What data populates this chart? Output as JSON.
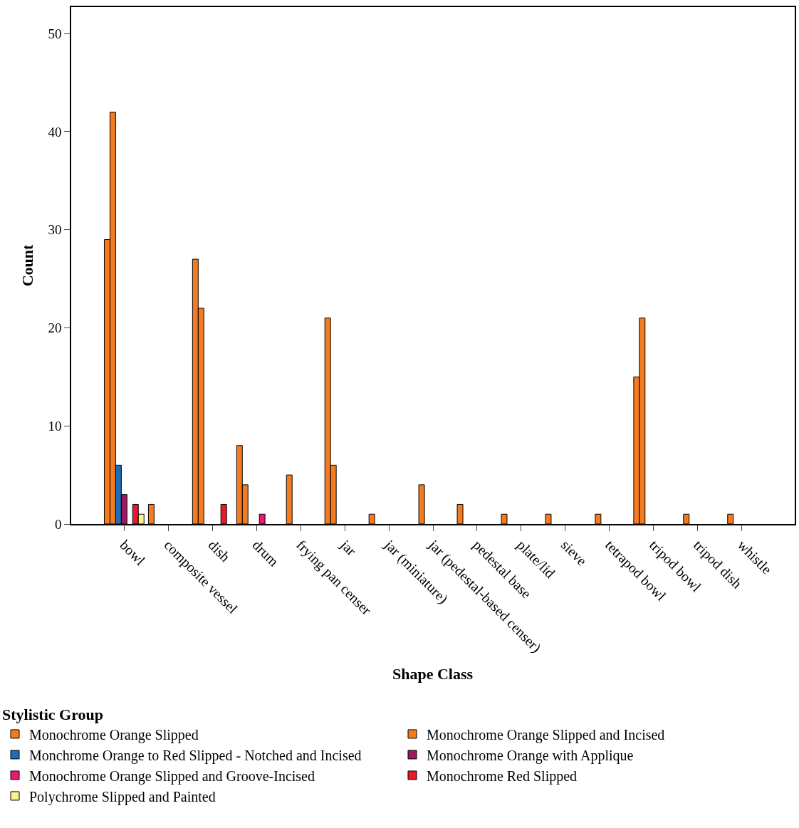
{
  "chart_data": {
    "type": "bar",
    "xlabel": "Shape Class",
    "ylabel": "Count",
    "legend_title": "Stylistic Group",
    "categories": [
      "bowl",
      "composite vessel",
      "dish",
      "drum",
      "frying pan censer",
      "jar",
      "jar (miniature)",
      "jar (pedestal-based censer)",
      "pedestal base",
      "plate/lid",
      "sieve",
      "tetrapod bowl",
      "tripod bowl",
      "tripod dish",
      "whistle"
    ],
    "series": [
      {
        "name": "Monochrome Orange Slipped",
        "color": "#f47b20",
        "values": [
          29,
          2,
          27,
          8,
          null,
          21,
          1,
          null,
          2,
          1,
          1,
          null,
          15,
          null,
          null
        ]
      },
      {
        "name": "Monochrome Orange Slipped and Incised",
        "color": "#f47b20",
        "values": [
          42,
          null,
          22,
          4,
          5,
          6,
          null,
          4,
          null,
          null,
          null,
          1,
          21,
          1,
          1
        ]
      },
      {
        "name": "Monchrome Orange to Red Slipped - Notched and Incised",
        "color": "#1e6db5",
        "values": [
          6,
          null,
          null,
          null,
          null,
          null,
          null,
          null,
          null,
          null,
          null,
          null,
          null,
          null,
          null
        ]
      },
      {
        "name": "Monochrome Orange with Applique",
        "color": "#9e1a5e",
        "values": [
          3,
          null,
          null,
          null,
          null,
          null,
          null,
          null,
          null,
          null,
          null,
          null,
          null,
          null,
          null
        ]
      },
      {
        "name": "Monochrome Orange Slipped and Groove-Incised",
        "color": "#ea1a70",
        "values": [
          null,
          null,
          null,
          1,
          null,
          null,
          null,
          null,
          null,
          null,
          null,
          null,
          null,
          null,
          null
        ]
      },
      {
        "name": "Monochrome Red Slipped",
        "color": "#e8192c",
        "values": [
          2,
          null,
          2,
          null,
          null,
          null,
          null,
          null,
          null,
          null,
          null,
          null,
          null,
          null,
          null
        ]
      },
      {
        "name": "Polychrome Slipped and Painted",
        "color": "#f7f58c",
        "values": [
          1,
          null,
          null,
          null,
          null,
          null,
          null,
          null,
          null,
          null,
          null,
          null,
          null,
          null,
          null
        ]
      }
    ],
    "ylim": [
      0,
      52.7
    ],
    "yticks": [
      0,
      10,
      20,
      30,
      40,
      50
    ],
    "legend": "bottom"
  }
}
